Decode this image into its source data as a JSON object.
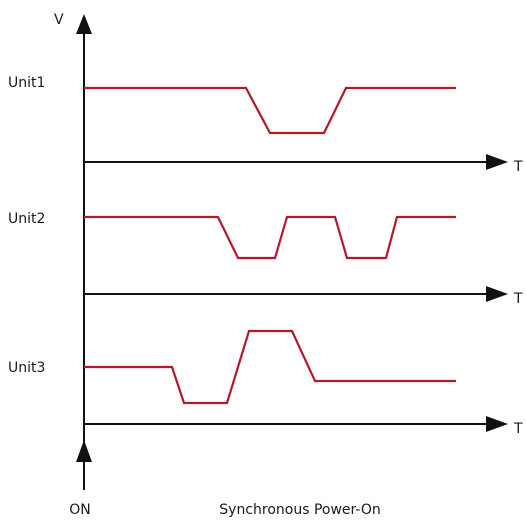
{
  "colors": {
    "wave": "#b11a2b",
    "axis": "#111111"
  },
  "vertical_axis": {
    "label": "V",
    "bottom_label": "ON"
  },
  "time_axis_label": "T",
  "caption": "Synchronous Power-On",
  "units": [
    {
      "label": "Unit1"
    },
    {
      "label": "Unit2"
    },
    {
      "label": "Unit3"
    }
  ]
}
